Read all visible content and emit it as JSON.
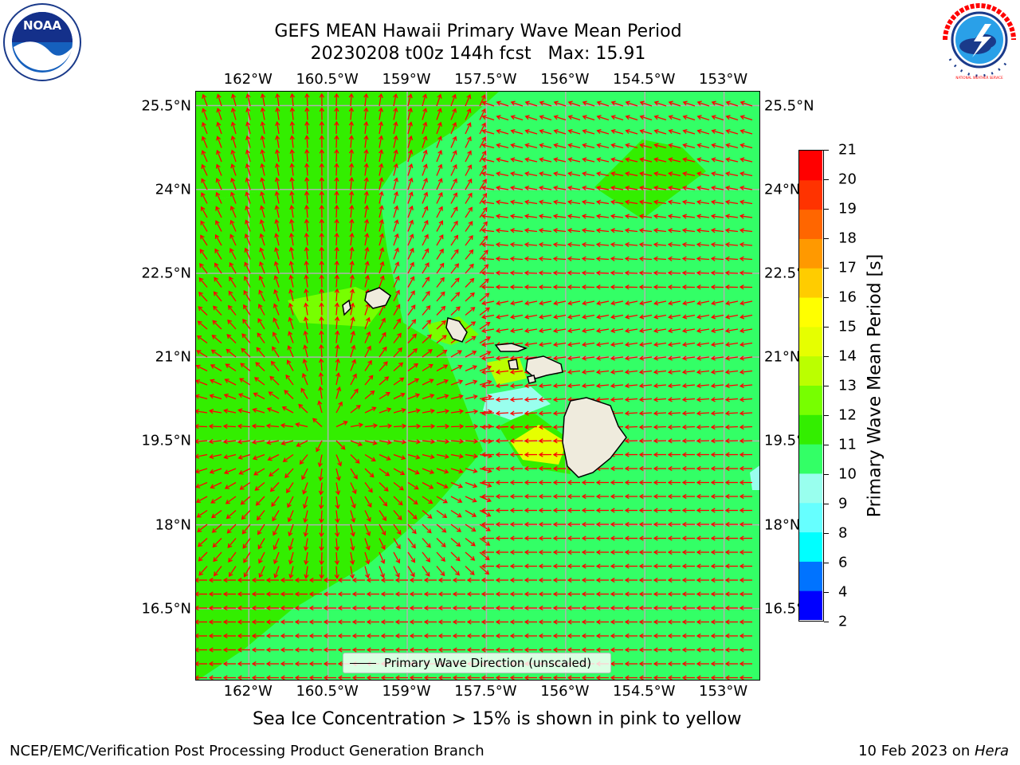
{
  "header": {
    "title": "GEFS MEAN Hawaii Primary Wave Mean Period",
    "subtitle": "20230208 t00z 144h fcst   Max: 15.91"
  },
  "map": {
    "lon_labels": [
      "162°W",
      "160.5°W",
      "159°W",
      "157.5°W",
      "156°W",
      "154.5°W",
      "153°W"
    ],
    "lat_labels": [
      "25.5°N",
      "24°N",
      "22.5°N",
      "21°N",
      "19.5°N",
      "18°N",
      "16.5°N"
    ],
    "extent": {
      "lon_min": -163.0,
      "lon_max": -152.3,
      "lat_min": 15.2,
      "lat_max": 25.75
    },
    "grid_lons": [
      -162,
      -160.5,
      -159,
      -157.5,
      -156,
      -154.5,
      -153
    ],
    "grid_lats": [
      25.5,
      24,
      22.5,
      21,
      19.5,
      18,
      16.5
    ],
    "field_colors": {
      "land": "#efebdd",
      "arrow": "#ff0000",
      "grid": "#b0b0b0",
      "coast": "#000000"
    },
    "legend_label": "Primary Wave Direction (unscaled)"
  },
  "colorbar": {
    "label": "Primary Wave Mean Period [s]",
    "levels": [
      2,
      4,
      6,
      8,
      9,
      10,
      11,
      12,
      13,
      14,
      15,
      16,
      17,
      18,
      19,
      20,
      21
    ],
    "tick_labels": [
      "2",
      "4",
      "6",
      "8",
      "9",
      "10",
      "11",
      "12",
      "13",
      "14",
      "15",
      "16",
      "17",
      "18",
      "19",
      "20",
      "21"
    ],
    "colors": [
      "#0000ff",
      "#0073ff",
      "#00ffff",
      "#66ffff",
      "#99ffee",
      "#33ff66",
      "#33ee00",
      "#77ff00",
      "#bbff00",
      "#e6ff00",
      "#ffff00",
      "#ffcc00",
      "#ff9900",
      "#ff6600",
      "#ff3300",
      "#ff0000"
    ]
  },
  "footer": {
    "note": "Sea Ice Concentration > 15% is shown in pink to yellow",
    "credit": "NCEP/EMC/Verification Post Processing Product Generation Branch",
    "date": "10 Feb 2023 on ",
    "machine": "Hera"
  },
  "logos": {
    "noaa": {
      "name": "noaa-logo",
      "text": "NOAA"
    },
    "nws": {
      "name": "nws-logo",
      "text": "NATIONAL WEATHER SERVICE"
    }
  }
}
